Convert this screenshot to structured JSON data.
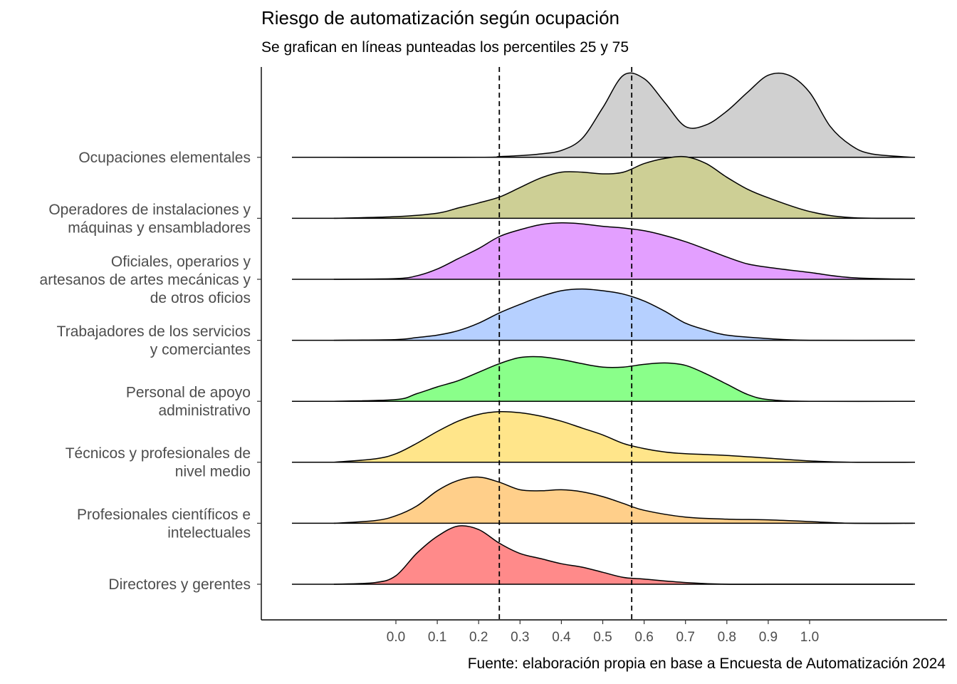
{
  "title": "Riesgo de automatización según ocupación",
  "subtitle": "Se grafican en líneas punteadas los percentiles 25 y 75",
  "caption": "Fuente: elaboración propia en base a Encuesta de Automatización 2024",
  "chart_data": {
    "type": "area",
    "subtype": "ridgeline-density",
    "title": "Riesgo de automatización según ocupación",
    "subtitle": "Se grafican en líneas punteadas los percentiles 25 y 75",
    "xlabel": "",
    "ylabel": "",
    "x_ticks": [
      0.0,
      0.1,
      0.2,
      0.3,
      0.4,
      0.5,
      0.6,
      0.7,
      0.8,
      0.9,
      1.0
    ],
    "x_tick_labels": [
      "0.0",
      "0.1",
      "0.2",
      "0.3",
      "0.4",
      "0.5",
      "0.6",
      "0.7",
      "0.8",
      "0.9",
      "1.0"
    ],
    "xlim": [
      -0.25,
      1.25
    ],
    "percentile_lines": [
      {
        "name": "p25",
        "x": 0.25
      },
      {
        "name": "p75",
        "x": 0.57
      }
    ],
    "grid": false,
    "legend": "none",
    "series": [
      {
        "label_lines": [
          "Directores y gerentes"
        ],
        "color": "#ff8080",
        "x": [
          -0.15,
          -0.05,
          0.0,
          0.05,
          0.1,
          0.15,
          0.2,
          0.25,
          0.3,
          0.35,
          0.4,
          0.45,
          0.5,
          0.55,
          0.6,
          0.7,
          0.8,
          0.9,
          1.0,
          1.1,
          1.25
        ],
        "density": [
          0.0,
          0.05,
          0.25,
          0.9,
          1.4,
          1.7,
          1.6,
          1.2,
          0.9,
          0.75,
          0.6,
          0.5,
          0.35,
          0.2,
          0.15,
          0.05,
          0.0,
          0.0,
          0.0,
          0.0,
          0.0
        ]
      },
      {
        "label_lines": [
          "Profesionales científicos e",
          "intelectuales"
        ],
        "color": "#ffcb80",
        "x": [
          -0.15,
          -0.05,
          0.0,
          0.05,
          0.1,
          0.15,
          0.2,
          0.25,
          0.3,
          0.35,
          0.4,
          0.45,
          0.5,
          0.55,
          0.6,
          0.7,
          0.8,
          0.9,
          1.0,
          1.1,
          1.25
        ],
        "density": [
          0.0,
          0.08,
          0.22,
          0.5,
          0.95,
          1.25,
          1.35,
          1.2,
          0.98,
          0.95,
          0.98,
          0.92,
          0.78,
          0.58,
          0.38,
          0.18,
          0.12,
          0.1,
          0.05,
          0.0,
          0.0
        ]
      },
      {
        "label_lines": [
          "Técnicos y profesionales de",
          "nivel medio"
        ],
        "color": "#ffe380",
        "x": [
          -0.15,
          -0.05,
          0.0,
          0.05,
          0.1,
          0.15,
          0.2,
          0.25,
          0.3,
          0.35,
          0.4,
          0.45,
          0.5,
          0.55,
          0.6,
          0.65,
          0.7,
          0.8,
          0.9,
          1.0,
          1.1,
          1.25
        ],
        "density": [
          0.0,
          0.1,
          0.25,
          0.55,
          0.9,
          1.2,
          1.4,
          1.48,
          1.45,
          1.35,
          1.2,
          1.0,
          0.8,
          0.55,
          0.4,
          0.3,
          0.25,
          0.2,
          0.12,
          0.04,
          0.0,
          0.0
        ]
      },
      {
        "label_lines": [
          "Personal de apoyo",
          "administrativo"
        ],
        "color": "#80ff80",
        "x": [
          -0.15,
          0.0,
          0.05,
          0.1,
          0.15,
          0.2,
          0.25,
          0.3,
          0.35,
          0.4,
          0.45,
          0.5,
          0.55,
          0.6,
          0.65,
          0.7,
          0.75,
          0.8,
          0.85,
          0.9,
          1.0,
          1.25
        ],
        "density": [
          0.0,
          0.05,
          0.22,
          0.42,
          0.6,
          0.85,
          1.1,
          1.28,
          1.3,
          1.22,
          1.1,
          1.0,
          1.0,
          1.08,
          1.12,
          1.05,
          0.8,
          0.5,
          0.2,
          0.05,
          0.0,
          0.0
        ]
      },
      {
        "label_lines": [
          "Trabajadores de los servicios",
          "y comerciantes"
        ],
        "color": "#b0ccff",
        "x": [
          -0.15,
          0.0,
          0.05,
          0.1,
          0.15,
          0.2,
          0.25,
          0.3,
          0.35,
          0.4,
          0.45,
          0.5,
          0.55,
          0.6,
          0.65,
          0.7,
          0.75,
          0.8,
          0.9,
          1.0,
          1.25
        ],
        "density": [
          0.0,
          0.02,
          0.08,
          0.15,
          0.28,
          0.5,
          0.8,
          1.05,
          1.28,
          1.45,
          1.5,
          1.45,
          1.35,
          1.15,
          0.85,
          0.5,
          0.3,
          0.15,
          0.05,
          0.0,
          0.0
        ]
      },
      {
        "label_lines": [
          "Oficiales, operarios y",
          "artesanos de artes mecánicas y",
          "de otros oficios"
        ],
        "color": "#e197ff",
        "x": [
          -0.15,
          0.0,
          0.05,
          0.1,
          0.15,
          0.2,
          0.25,
          0.3,
          0.35,
          0.4,
          0.45,
          0.5,
          0.55,
          0.6,
          0.65,
          0.7,
          0.75,
          0.8,
          0.85,
          0.9,
          1.0,
          1.1,
          1.25
        ],
        "density": [
          0.0,
          0.02,
          0.1,
          0.3,
          0.6,
          0.9,
          1.25,
          1.45,
          1.6,
          1.65,
          1.62,
          1.55,
          1.5,
          1.42,
          1.28,
          1.1,
          0.88,
          0.65,
          0.45,
          0.35,
          0.2,
          0.05,
          0.0
        ]
      },
      {
        "label_lines": [
          "Operadores de instalaciones y",
          "máquinas y ensambladores"
        ],
        "color": "#c9cb8c",
        "x": [
          -0.15,
          0.0,
          0.1,
          0.15,
          0.2,
          0.25,
          0.3,
          0.35,
          0.4,
          0.45,
          0.5,
          0.55,
          0.6,
          0.65,
          0.7,
          0.75,
          0.8,
          0.85,
          0.9,
          1.0,
          1.1,
          1.25
        ],
        "density": [
          0.0,
          0.05,
          0.15,
          0.3,
          0.45,
          0.62,
          0.9,
          1.18,
          1.35,
          1.35,
          1.3,
          1.35,
          1.6,
          1.75,
          1.8,
          1.6,
          1.2,
          0.85,
          0.6,
          0.2,
          0.02,
          0.0
        ]
      },
      {
        "label_lines": [
          "Ocupaciones elementales"
        ],
        "color": "#cccccc",
        "x": [
          -0.15,
          0.2,
          0.25,
          0.3,
          0.35,
          0.4,
          0.45,
          0.5,
          0.55,
          0.6,
          0.65,
          0.7,
          0.75,
          0.8,
          0.85,
          0.9,
          0.95,
          1.0,
          1.05,
          1.1,
          1.15,
          1.25
        ],
        "density": [
          0.0,
          0.0,
          0.02,
          0.05,
          0.1,
          0.2,
          0.55,
          1.45,
          2.4,
          2.3,
          1.6,
          0.9,
          0.95,
          1.35,
          1.9,
          2.4,
          2.4,
          1.9,
          0.9,
          0.35,
          0.1,
          0.0
        ]
      }
    ]
  }
}
